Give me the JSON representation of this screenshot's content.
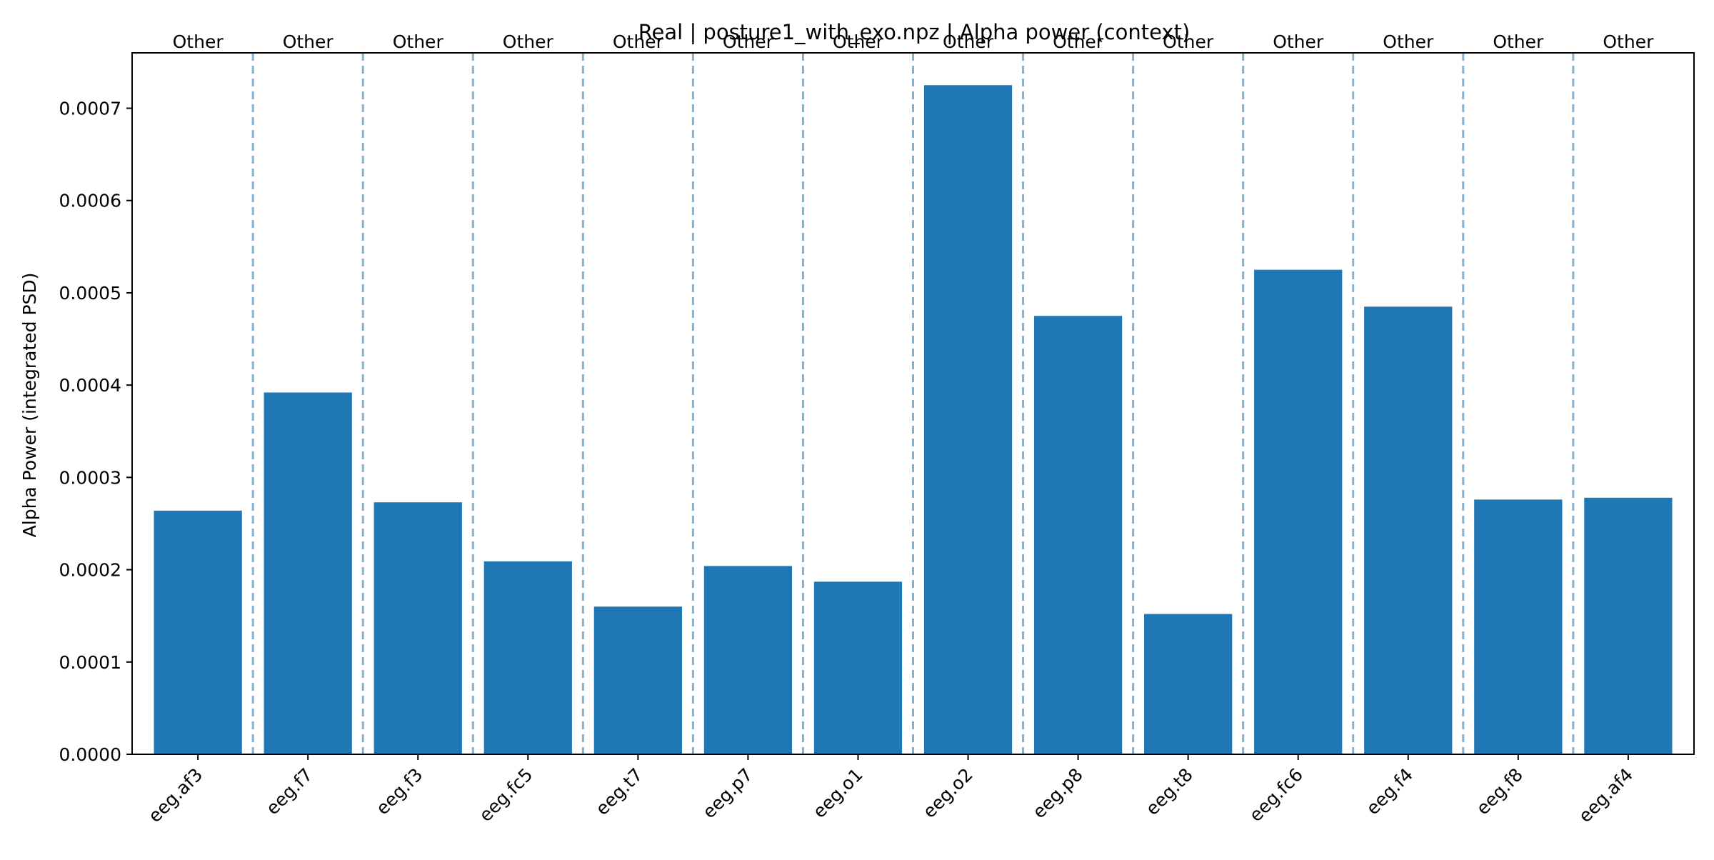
{
  "chart_data": {
    "type": "bar",
    "title": "Real | posture1_with_exo.npz | Alpha power (context)",
    "xlabel": "",
    "ylabel": "Alpha Power (integrated PSD)",
    "categories": [
      "eeg.af3",
      "eeg.f7",
      "eeg.f3",
      "eeg.fc5",
      "eeg.t7",
      "eeg.p7",
      "eeg.o1",
      "eeg.o2",
      "eeg.p8",
      "eeg.t8",
      "eeg.fc6",
      "eeg.f4",
      "eeg.f8",
      "eeg.af4"
    ],
    "values": [
      0.000264,
      0.000392,
      0.000273,
      0.000209,
      0.00016,
      0.000204,
      0.000187,
      0.000725,
      0.000475,
      0.000152,
      0.000525,
      0.000485,
      0.000276,
      0.000278
    ],
    "group_labels": [
      "Other",
      "Other",
      "Other",
      "Other",
      "Other",
      "Other",
      "Other",
      "Other",
      "Other",
      "Other",
      "Other",
      "Other",
      "Other",
      "Other"
    ],
    "ylim": [
      0,
      0.00076
    ],
    "yticks": [
      0,
      0.0001,
      0.0002,
      0.0003,
      0.0004,
      0.0005,
      0.0006,
      0.0007
    ],
    "ytick_labels": [
      "0.0000",
      "0.0001",
      "0.0002",
      "0.0003",
      "0.0004",
      "0.0005",
      "0.0006",
      "0.0007"
    ],
    "grid": false,
    "bar_color": "#1f77b4",
    "separator_color": "#7fb3d5",
    "separator_style": "dashed"
  }
}
